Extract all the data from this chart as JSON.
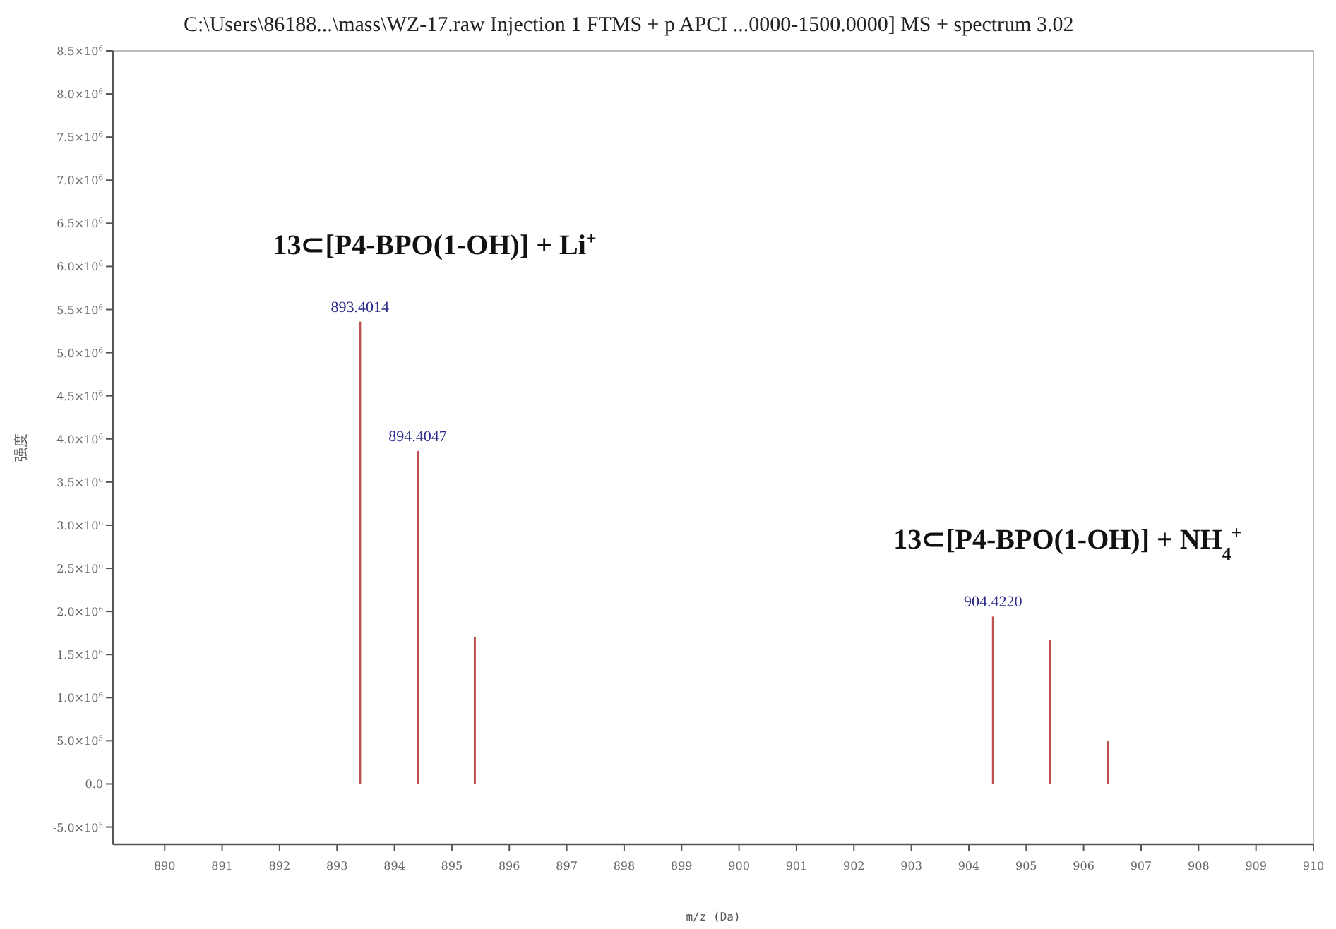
{
  "chart_data": {
    "type": "bar",
    "title": "C:\\Users\\86188...\\mass\\WZ-17.raw Injection 1 FTMS + p APCI ...0000-1500.0000] MS + spectrum 3.02",
    "xlabel": "m/z (Da)",
    "ylabel": "强度",
    "x": [
      893.4014,
      894.4047,
      895.4,
      904.422,
      905.42,
      906.42
    ],
    "values": [
      5360000,
      3860000,
      1700000,
      1940000,
      1670000,
      500000
    ],
    "color": "#c0504d",
    "xlim": [
      889.1,
      910
    ],
    "xticks": [
      890,
      891,
      892,
      893,
      894,
      895,
      896,
      897,
      898,
      899,
      900,
      901,
      902,
      903,
      904,
      905,
      906,
      907,
      908,
      909,
      910
    ],
    "ylim": [
      -700000,
      8500000
    ],
    "yticks": [
      {
        "value": -500000,
        "label": "-5.0×10$^{5}$"
      },
      {
        "value": 0,
        "label": "0.0"
      },
      {
        "value": 500000,
        "label": "5.0×10$^{5}$"
      },
      {
        "value": 1000000,
        "label": "1.0×10$^{6}$"
      },
      {
        "value": 1500000,
        "label": "1.5×10$^{6}$"
      },
      {
        "value": 2000000,
        "label": "2.0×10$^{6}$"
      },
      {
        "value": 2500000,
        "label": "2.5×10$^{6}$"
      },
      {
        "value": 3000000,
        "label": "3.0×10$^{6}$"
      },
      {
        "value": 3500000,
        "label": "3.5×10$^{6}$"
      },
      {
        "value": 4000000,
        "label": "4.0×10$^{6}$"
      },
      {
        "value": 4500000,
        "label": "4.5×10$^{6}$"
      },
      {
        "value": 5000000,
        "label": "5.0×10$^{6}$"
      },
      {
        "value": 5500000,
        "label": "5.5×10$^{6}$"
      },
      {
        "value": 6000000,
        "label": "6.0×10$^{6}$"
      },
      {
        "value": 6500000,
        "label": "6.5×10$^{6}$"
      },
      {
        "value": 7000000,
        "label": "7.0×10$^{6}$"
      },
      {
        "value": 7500000,
        "label": "7.5×10$^{6}$"
      },
      {
        "value": 8000000,
        "label": "8.0×10$^{6}$"
      },
      {
        "value": 8500000,
        "label": "8.5×10$^{6}$"
      }
    ],
    "grid": false,
    "annotations": [
      {
        "text": "893.4014",
        "x": 893.4014,
        "y": 5360000
      },
      {
        "text": "894.4047",
        "x": 894.4047,
        "y": 3860000
      },
      {
        "text": "904.4220",
        "x": 904.422,
        "y": 1940000
      },
      "13⊂[P4-BPO(1-OH)] + Li$^{+}$",
      "13⊂[P4-BPO(1-OH)] + NH$_{4}$$^{+}$"
    ]
  }
}
